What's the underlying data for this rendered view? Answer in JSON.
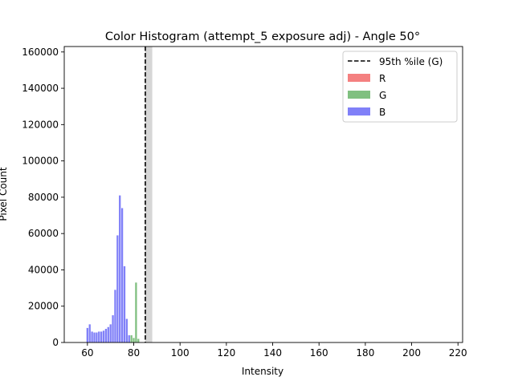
{
  "chart_data": {
    "type": "bar",
    "title": "Color Histogram (attempt_5 exposure adj) - Angle 50°",
    "xlabel": "Intensity",
    "ylabel": "Pixel Count",
    "xlim": [
      50,
      222
    ],
    "ylim": [
      0,
      163000
    ],
    "xticks": [
      60,
      80,
      100,
      120,
      140,
      160,
      180,
      200,
      220
    ],
    "yticks": [
      0,
      20000,
      40000,
      60000,
      80000,
      100000,
      120000,
      140000,
      160000
    ],
    "grid": false,
    "legend_position": "top-right",
    "colors": {
      "R": "#f48080",
      "G": "#80c080",
      "B": "#8080f8",
      "band": "#d6d6d6"
    },
    "series": [
      {
        "name": "R",
        "color": "#f48080",
        "x": [],
        "values": []
      },
      {
        "name": "G",
        "color": "#80c080",
        "x": [
          78,
          79,
          80,
          81,
          82
        ],
        "values": [
          1500,
          4000,
          2500,
          33000,
          2000
        ]
      },
      {
        "name": "B",
        "color": "#8080f8",
        "x": [
          60,
          61,
          62,
          63,
          64,
          65,
          66,
          67,
          68,
          69,
          70,
          71,
          72,
          73,
          74,
          75,
          76,
          77,
          78
        ],
        "values": [
          8000,
          10000,
          6000,
          5500,
          5500,
          6000,
          6000,
          6500,
          7500,
          8500,
          10000,
          15000,
          29000,
          59000,
          81000,
          74000,
          42000,
          13000,
          4000
        ]
      }
    ],
    "percentile_line": {
      "label": "95th %ile (G)",
      "x": 85
    },
    "shaded_band": {
      "x_start": 85,
      "x_end": 88
    }
  }
}
